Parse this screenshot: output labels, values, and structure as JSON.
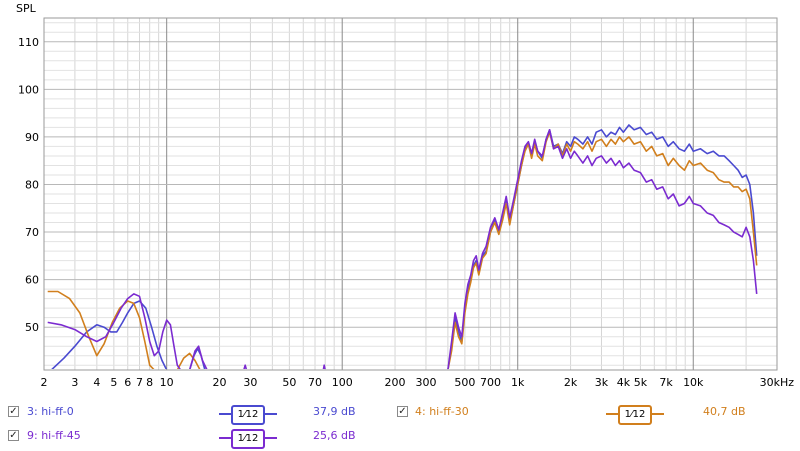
{
  "chart_data": {
    "type": "line",
    "ylabel": "SPL",
    "x_scale": "log",
    "xlim": [
      2,
      30000
    ],
    "ylim": [
      41,
      115
    ],
    "y_ticks": [
      50,
      60,
      70,
      80,
      90,
      100,
      110
    ],
    "y_tick_labels": [
      "50",
      "60",
      "70",
      "80",
      "90",
      "100",
      "110"
    ],
    "x_tick_labels": [
      {
        "v": 2,
        "t": "2"
      },
      {
        "v": 3,
        "t": "3"
      },
      {
        "v": 4,
        "t": "4"
      },
      {
        "v": 5,
        "t": "5"
      },
      {
        "v": 6,
        "t": "6"
      },
      {
        "v": 7,
        "t": "7"
      },
      {
        "v": 8,
        "t": "8"
      },
      {
        "v": 10,
        "t": "10"
      },
      {
        "v": 20,
        "t": "20"
      },
      {
        "v": 30,
        "t": "30"
      },
      {
        "v": 50,
        "t": "50"
      },
      {
        "v": 70,
        "t": "70"
      },
      {
        "v": 100,
        "t": "100"
      },
      {
        "v": 200,
        "t": "200"
      },
      {
        "v": 300,
        "t": "300"
      },
      {
        "v": 500,
        "t": "500"
      },
      {
        "v": 700,
        "t": "700"
      },
      {
        "v": 1000,
        "t": "1k"
      },
      {
        "v": 2000,
        "t": "2k"
      },
      {
        "v": 3000,
        "t": "3k"
      },
      {
        "v": 4000,
        "t": "4k"
      },
      {
        "v": 5000,
        "t": "5k"
      },
      {
        "v": 7000,
        "t": "7k"
      },
      {
        "v": 10000,
        "t": "10k"
      },
      {
        "v": 30000,
        "t": "30kHz"
      }
    ],
    "grid": true,
    "series": [
      {
        "name": "3: hi-ff-0",
        "color": "#4a4ad0",
        "points": [
          [
            2.2,
            41
          ],
          [
            2.6,
            43.5
          ],
          [
            3,
            46
          ],
          [
            3.5,
            49
          ],
          [
            4,
            50.5
          ],
          [
            4.4,
            50
          ],
          [
            4.8,
            49
          ],
          [
            5.2,
            49
          ],
          [
            5.6,
            51
          ],
          [
            6,
            53
          ],
          [
            6.5,
            55
          ],
          [
            7,
            55.5
          ],
          [
            7.6,
            54
          ],
          [
            8.2,
            50
          ],
          [
            8.8,
            46
          ],
          [
            9.4,
            43
          ],
          [
            10,
            41
          ],
          [
            13.5,
            41
          ],
          [
            14.3,
            44
          ],
          [
            15,
            45.5
          ],
          [
            15.7,
            44
          ],
          [
            16.5,
            41
          ],
          [
            400,
            41
          ],
          [
            420,
            46
          ],
          [
            440,
            52
          ],
          [
            460,
            49
          ],
          [
            480,
            47
          ],
          [
            500,
            54
          ],
          [
            520,
            58
          ],
          [
            540,
            60
          ],
          [
            560,
            63
          ],
          [
            580,
            64
          ],
          [
            600,
            61.5
          ],
          [
            630,
            65
          ],
          [
            660,
            66
          ],
          [
            700,
            70
          ],
          [
            740,
            72.5
          ],
          [
            780,
            70
          ],
          [
            820,
            73
          ],
          [
            860,
            76.5
          ],
          [
            900,
            72
          ],
          [
            950,
            76
          ],
          [
            1000,
            80
          ],
          [
            1050,
            84
          ],
          [
            1100,
            87.5
          ],
          [
            1150,
            88.5
          ],
          [
            1200,
            86
          ],
          [
            1250,
            89
          ],
          [
            1300,
            87
          ],
          [
            1380,
            85.5
          ],
          [
            1450,
            89.5
          ],
          [
            1520,
            91.5
          ],
          [
            1600,
            88
          ],
          [
            1700,
            88.5
          ],
          [
            1800,
            86.5
          ],
          [
            1900,
            89
          ],
          [
            2000,
            88
          ],
          [
            2100,
            90
          ],
          [
            2200,
            89.5
          ],
          [
            2350,
            88.5
          ],
          [
            2500,
            90
          ],
          [
            2650,
            88.5
          ],
          [
            2800,
            91
          ],
          [
            3000,
            91.5
          ],
          [
            3200,
            90
          ],
          [
            3400,
            91
          ],
          [
            3600,
            90.5
          ],
          [
            3800,
            92
          ],
          [
            4000,
            91
          ],
          [
            4300,
            92.5
          ],
          [
            4600,
            91.5
          ],
          [
            5000,
            92
          ],
          [
            5400,
            90.5
          ],
          [
            5800,
            91
          ],
          [
            6200,
            89.5
          ],
          [
            6700,
            90
          ],
          [
            7200,
            88
          ],
          [
            7700,
            89
          ],
          [
            8300,
            87.5
          ],
          [
            8900,
            87
          ],
          [
            9500,
            88.5
          ],
          [
            10000,
            87
          ],
          [
            11000,
            87.5
          ],
          [
            12000,
            86.5
          ],
          [
            13000,
            87
          ],
          [
            14000,
            86
          ],
          [
            15000,
            86
          ],
          [
            16000,
            85
          ],
          [
            17000,
            84
          ],
          [
            18000,
            83
          ],
          [
            19000,
            81.5
          ],
          [
            20000,
            82
          ],
          [
            21000,
            80
          ],
          [
            22000,
            74
          ],
          [
            23000,
            65
          ]
        ]
      },
      {
        "name": "4: hi-ff-30",
        "color": "#d17f1d",
        "points": [
          [
            2.1,
            57.5
          ],
          [
            2.4,
            57.5
          ],
          [
            2.8,
            56
          ],
          [
            3.2,
            53
          ],
          [
            3.6,
            48
          ],
          [
            4,
            44
          ],
          [
            4.4,
            46.5
          ],
          [
            4.9,
            51
          ],
          [
            5.4,
            54
          ],
          [
            6,
            55.5
          ],
          [
            6.5,
            55
          ],
          [
            7,
            52
          ],
          [
            7.5,
            47
          ],
          [
            8,
            42
          ],
          [
            8.5,
            41
          ],
          [
            11.5,
            41
          ],
          [
            12.5,
            43.5
          ],
          [
            13.5,
            44.5
          ],
          [
            14.5,
            43
          ],
          [
            15.5,
            41
          ],
          [
            400,
            41
          ],
          [
            420,
            45
          ],
          [
            440,
            51
          ],
          [
            460,
            48
          ],
          [
            480,
            46.5
          ],
          [
            500,
            53
          ],
          [
            520,
            57
          ],
          [
            540,
            59.5
          ],
          [
            560,
            62.5
          ],
          [
            580,
            63.5
          ],
          [
            600,
            61
          ],
          [
            630,
            64.5
          ],
          [
            660,
            65.5
          ],
          [
            700,
            70
          ],
          [
            740,
            72
          ],
          [
            780,
            69.5
          ],
          [
            820,
            72.5
          ],
          [
            860,
            76
          ],
          [
            900,
            71.5
          ],
          [
            950,
            76
          ],
          [
            1000,
            80
          ],
          [
            1050,
            84
          ],
          [
            1100,
            87
          ],
          [
            1150,
            88.5
          ],
          [
            1200,
            85.5
          ],
          [
            1250,
            88.5
          ],
          [
            1300,
            86
          ],
          [
            1380,
            85
          ],
          [
            1450,
            89
          ],
          [
            1520,
            91
          ],
          [
            1600,
            87.5
          ],
          [
            1700,
            88.5
          ],
          [
            1800,
            86
          ],
          [
            1900,
            88.5
          ],
          [
            2000,
            87
          ],
          [
            2100,
            89
          ],
          [
            2200,
            88.5
          ],
          [
            2350,
            87.5
          ],
          [
            2500,
            89
          ],
          [
            2650,
            87
          ],
          [
            2800,
            89
          ],
          [
            3000,
            89.5
          ],
          [
            3200,
            88
          ],
          [
            3400,
            89.5
          ],
          [
            3600,
            88.5
          ],
          [
            3800,
            90
          ],
          [
            4000,
            89
          ],
          [
            4300,
            90
          ],
          [
            4600,
            88.5
          ],
          [
            5000,
            89
          ],
          [
            5400,
            87
          ],
          [
            5800,
            88
          ],
          [
            6200,
            86
          ],
          [
            6700,
            86.5
          ],
          [
            7200,
            84
          ],
          [
            7700,
            85.5
          ],
          [
            8300,
            84
          ],
          [
            8900,
            83
          ],
          [
            9500,
            85
          ],
          [
            10000,
            84
          ],
          [
            11000,
            84.5
          ],
          [
            12000,
            83
          ],
          [
            13000,
            82.5
          ],
          [
            14000,
            81
          ],
          [
            15000,
            80.5
          ],
          [
            16000,
            80.5
          ],
          [
            17000,
            79.5
          ],
          [
            18000,
            79.5
          ],
          [
            19000,
            78.5
          ],
          [
            20000,
            79
          ],
          [
            21000,
            77
          ],
          [
            22000,
            70
          ],
          [
            23000,
            63
          ]
        ]
      },
      {
        "name": "9: hi-ff-45",
        "color": "#7b2bd0",
        "points": [
          [
            2.1,
            51
          ],
          [
            2.5,
            50.5
          ],
          [
            3,
            49.5
          ],
          [
            3.5,
            48
          ],
          [
            4,
            47
          ],
          [
            4.5,
            48
          ],
          [
            5,
            51
          ],
          [
            5.5,
            54
          ],
          [
            6,
            56
          ],
          [
            6.5,
            57
          ],
          [
            7,
            56.5
          ],
          [
            7.5,
            52
          ],
          [
            8,
            47
          ],
          [
            8.5,
            44
          ],
          [
            9,
            45
          ],
          [
            9.5,
            49
          ],
          [
            10,
            51.5
          ],
          [
            10.5,
            50.5
          ],
          [
            11,
            46
          ],
          [
            11.5,
            42
          ],
          [
            12,
            41
          ],
          [
            13.5,
            41
          ],
          [
            14.5,
            45
          ],
          [
            15.2,
            46
          ],
          [
            16,
            43
          ],
          [
            17,
            41
          ],
          [
            27.5,
            41
          ],
          [
            28,
            42
          ],
          [
            28.5,
            41
          ],
          [
            78,
            41
          ],
          [
            79,
            42
          ],
          [
            80,
            41
          ],
          [
            400,
            41
          ],
          [
            420,
            47
          ],
          [
            440,
            53
          ],
          [
            460,
            50
          ],
          [
            480,
            48
          ],
          [
            500,
            55
          ],
          [
            520,
            59
          ],
          [
            540,
            61
          ],
          [
            560,
            64
          ],
          [
            580,
            65
          ],
          [
            600,
            62
          ],
          [
            630,
            65.5
          ],
          [
            660,
            67
          ],
          [
            700,
            71
          ],
          [
            740,
            73
          ],
          [
            780,
            70.5
          ],
          [
            820,
            74
          ],
          [
            860,
            77.5
          ],
          [
            900,
            73
          ],
          [
            950,
            77
          ],
          [
            1000,
            81
          ],
          [
            1050,
            85
          ],
          [
            1100,
            88
          ],
          [
            1150,
            89
          ],
          [
            1200,
            86.5
          ],
          [
            1250,
            89.5
          ],
          [
            1300,
            87
          ],
          [
            1380,
            86
          ],
          [
            1450,
            89.5
          ],
          [
            1520,
            91.5
          ],
          [
            1600,
            87.5
          ],
          [
            1700,
            88
          ],
          [
            1800,
            85.5
          ],
          [
            1900,
            87.5
          ],
          [
            2000,
            85.5
          ],
          [
            2100,
            87
          ],
          [
            2200,
            86
          ],
          [
            2350,
            84.5
          ],
          [
            2500,
            86
          ],
          [
            2650,
            84
          ],
          [
            2800,
            85.5
          ],
          [
            3000,
            86
          ],
          [
            3200,
            84.5
          ],
          [
            3400,
            85.5
          ],
          [
            3600,
            84
          ],
          [
            3800,
            85
          ],
          [
            4000,
            83.5
          ],
          [
            4300,
            84.5
          ],
          [
            4600,
            83
          ],
          [
            5000,
            82.5
          ],
          [
            5400,
            80.5
          ],
          [
            5800,
            81
          ],
          [
            6200,
            79
          ],
          [
            6700,
            79.5
          ],
          [
            7200,
            77
          ],
          [
            7700,
            78
          ],
          [
            8300,
            75.5
          ],
          [
            8900,
            76
          ],
          [
            9500,
            77.5
          ],
          [
            10000,
            76
          ],
          [
            11000,
            75.5
          ],
          [
            12000,
            74
          ],
          [
            13000,
            73.5
          ],
          [
            14000,
            72
          ],
          [
            15000,
            71.5
          ],
          [
            16000,
            71
          ],
          [
            17000,
            70
          ],
          [
            18000,
            69.5
          ],
          [
            19000,
            69
          ],
          [
            20000,
            71
          ],
          [
            21000,
            69
          ],
          [
            22000,
            64
          ],
          [
            23000,
            57
          ]
        ]
      }
    ]
  },
  "legend": [
    {
      "name": "3: hi-ff-0",
      "value": "37,9 dB",
      "color": "#4a4ad0",
      "checked": true
    },
    {
      "name": "4: hi-ff-30",
      "value": "40,7 dB",
      "color": "#d17f1d",
      "checked": true
    },
    {
      "name": "9: hi-ff-45",
      "value": "25,6 dB",
      "color": "#7b2bd0",
      "checked": true
    }
  ],
  "smoothing_label": "1⁄12"
}
